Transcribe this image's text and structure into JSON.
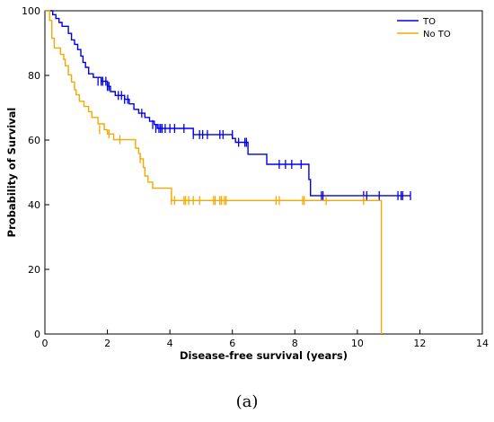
{
  "panel_label": "(a)",
  "chart_data": {
    "type": "line",
    "step": true,
    "title": "",
    "xlabel": "Disease-free survival (years)",
    "ylabel": "Probability of Survival",
    "xlim": [
      0,
      14
    ],
    "ylim": [
      0,
      100
    ],
    "x_ticks": [
      0,
      2,
      4,
      6,
      8,
      10,
      12,
      14
    ],
    "y_ticks": [
      0,
      20,
      40,
      60,
      80,
      100
    ],
    "grid": false,
    "legend_position": "top-right",
    "series": [
      {
        "name": "TO",
        "color": "#0000ee",
        "x": [
          0,
          0.25,
          0.35,
          0.45,
          0.55,
          0.75,
          0.85,
          0.95,
          1.05,
          1.15,
          1.22,
          1.3,
          1.4,
          1.55,
          1.8,
          2.0,
          2.1,
          2.25,
          2.55,
          2.7,
          2.85,
          3.0,
          3.2,
          3.35,
          3.5,
          3.6,
          4.75,
          6.0,
          6.1,
          6.5,
          7.1,
          8.45,
          8.5,
          11.7
        ],
        "y": [
          100,
          98.8,
          97.6,
          96.4,
          95.2,
          93,
          91,
          89.6,
          88,
          86,
          84,
          82.5,
          80.5,
          79.4,
          78.2,
          76.6,
          75,
          73.8,
          72.6,
          71.2,
          69.5,
          68.3,
          67,
          65.8,
          64.8,
          63.6,
          61.7,
          60.5,
          59.3,
          55.6,
          52.5,
          47.8,
          42.8,
          42.8
        ],
        "censored_x": [
          1.7,
          1.8,
          1.85,
          1.95,
          2.0,
          2.05,
          2.35,
          2.45,
          2.55,
          2.65,
          3.1,
          3.45,
          3.55,
          3.65,
          3.7,
          3.75,
          3.85,
          4.0,
          4.15,
          4.45,
          4.75,
          4.95,
          5.05,
          5.2,
          5.6,
          5.7,
          6.0,
          6.2,
          6.4,
          6.45,
          7.5,
          7.7,
          7.9,
          8.2,
          8.85,
          8.9,
          10.2,
          10.3,
          10.7,
          11.3,
          11.4,
          11.45,
          11.7
        ],
        "censored_y": [
          78.2,
          78.2,
          78.2,
          78.2,
          76.6,
          76.6,
          73.8,
          73.8,
          72.6,
          72.6,
          68.3,
          64.8,
          63.6,
          63.6,
          63.6,
          63.6,
          63.6,
          63.6,
          63.6,
          63.6,
          61.7,
          61.7,
          61.7,
          61.7,
          61.7,
          61.7,
          61.7,
          59.3,
          59.3,
          59.3,
          52.5,
          52.5,
          52.5,
          52.5,
          42.8,
          42.8,
          42.8,
          42.8,
          42.8,
          42.8,
          42.8,
          42.8,
          42.8
        ]
      },
      {
        "name": "No TO",
        "color": "#f5a800",
        "x": [
          0,
          0.15,
          0.22,
          0.3,
          0.5,
          0.6,
          0.65,
          0.75,
          0.85,
          0.95,
          1.0,
          1.1,
          1.25,
          1.4,
          1.5,
          1.7,
          1.9,
          2.0,
          2.2,
          2.9,
          3.0,
          3.05,
          3.15,
          3.2,
          3.3,
          3.45,
          4.05,
          10.75,
          10.77
        ],
        "y": [
          100,
          97,
          91.5,
          88.5,
          86.5,
          85,
          83,
          80.2,
          78,
          75.5,
          74,
          72,
          70.4,
          68.8,
          67,
          65,
          63.2,
          61.9,
          60.1,
          57.5,
          55.8,
          54.2,
          51.5,
          48.9,
          47,
          45.1,
          41.3,
          41.3,
          0
        ],
        "censored_x": [
          1.75,
          2.05,
          2.4,
          3.05,
          4.05,
          4.15,
          4.45,
          4.5,
          4.6,
          4.75,
          4.95,
          5.4,
          5.45,
          5.6,
          5.65,
          5.75,
          5.8,
          7.4,
          7.5,
          8.25,
          8.3,
          9.0,
          10.2
        ],
        "censored_y": [
          63.2,
          61.9,
          60.1,
          54.2,
          41.3,
          41.3,
          41.3,
          41.3,
          41.3,
          41.3,
          41.3,
          41.3,
          41.3,
          41.3,
          41.3,
          41.3,
          41.3,
          41.3,
          41.3,
          41.3,
          41.3,
          41.3,
          41.3
        ]
      }
    ]
  }
}
